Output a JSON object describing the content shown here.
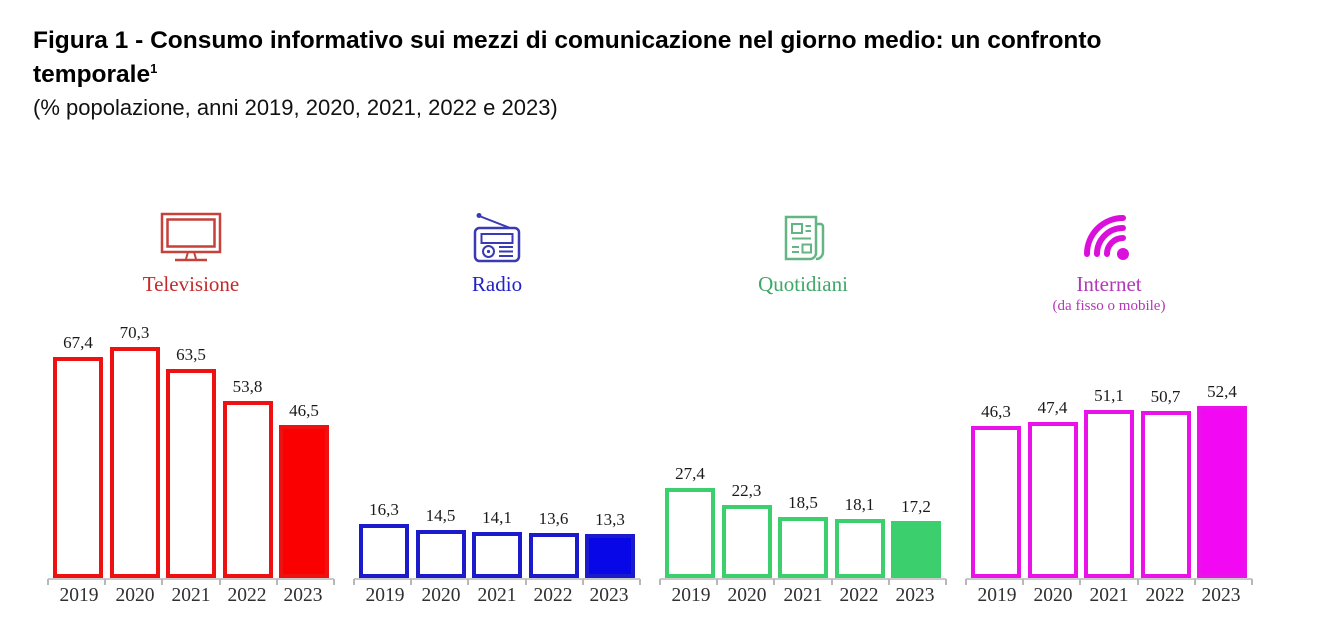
{
  "title": {
    "line1": "Figura 1 - Consumo informativo sui mezzi di comunicazione nel giorno medio: un confronto",
    "line2": "temporale",
    "superscript": "1",
    "subtitle": "(% popolazione, anni 2019, 2020, 2021, 2022 e 2023)"
  },
  "chart_data": {
    "type": "bar",
    "title": "Figura 1 - Consumo informativo sui mezzi di comunicazione nel giorno medio: un confronto temporale",
    "unit": "% popolazione",
    "categories": [
      "2019",
      "2020",
      "2021",
      "2022",
      "2023"
    ],
    "highlighted_category": "2023",
    "decimal_separator": ",",
    "ylim": [
      0,
      75
    ],
    "grid": false,
    "legend_position": "none",
    "value_labels": true,
    "groups": [
      {
        "name": "Televisione",
        "icon": "tv-icon",
        "values": [
          67.4,
          70.3,
          63.5,
          53.8,
          46.5
        ],
        "bar_color": "#ed1111",
        "fill_color": "#fb0000",
        "icon_color": "#c5413a",
        "label_color": "#c42a2a"
      },
      {
        "name": "Radio",
        "icon": "radio-icon",
        "values": [
          16.3,
          14.5,
          14.1,
          13.6,
          13.3
        ],
        "bar_color": "#1b1bcb",
        "fill_color": "#0707e8",
        "icon_color": "#3a3ab4",
        "label_color": "#2222c8"
      },
      {
        "name": "Quotidiani",
        "icon": "newspaper-icon",
        "values": [
          27.4,
          22.3,
          18.5,
          18.1,
          17.2
        ],
        "bar_color": "#3bcf6e",
        "fill_color": "#3bcf6e",
        "icon_color": "#63b683",
        "label_color": "#3fa768"
      },
      {
        "name": "Internet",
        "sublabel": "(da fisso o mobile)",
        "icon": "wifi-icon",
        "values": [
          46.3,
          47.4,
          51.1,
          50.7,
          52.4
        ],
        "bar_color": "#e913e9",
        "fill_color": "#f208f2",
        "icon_color": "#db0fdb",
        "label_color": "#b238b8"
      }
    ]
  }
}
